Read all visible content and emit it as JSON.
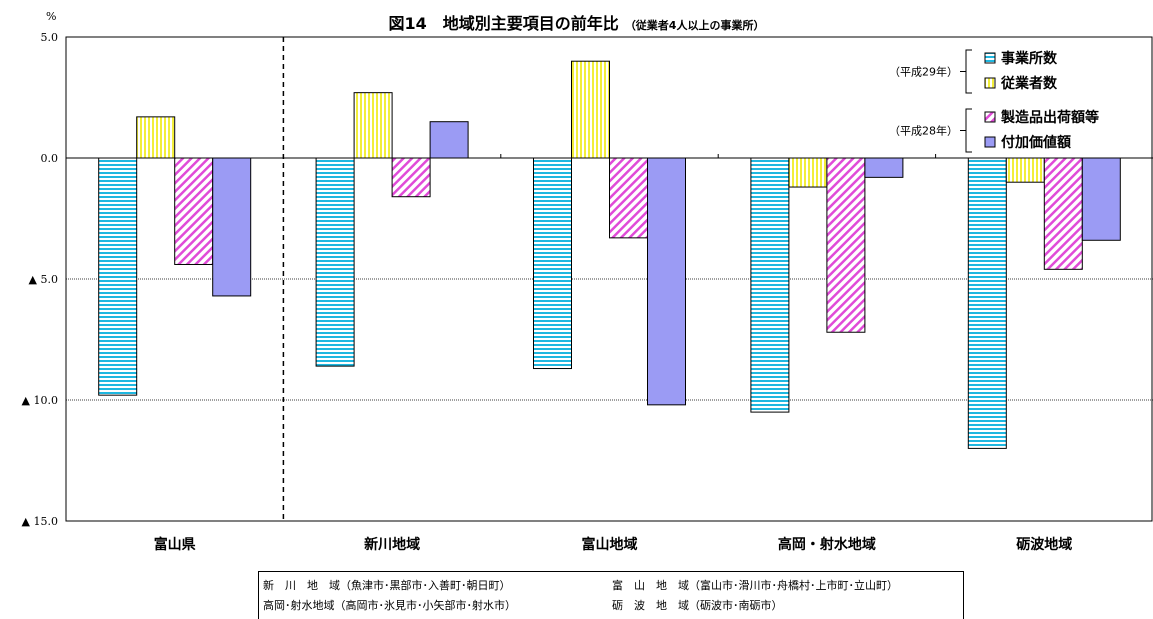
{
  "chart_data": {
    "type": "bar",
    "title": "図14　地域別主要項目の前年比",
    "subtitle": "（従業者4人以上の事業所）",
    "unit_label": "%",
    "categories": [
      "富山県",
      "新川地域",
      "富山地域",
      "高岡・射水地域",
      "砺波地域"
    ],
    "series": [
      {
        "name": "事業所数",
        "values": [
          -9.8,
          -8.6,
          -8.7,
          -10.5,
          -12.0
        ],
        "pattern": "hstripe",
        "color": "#1fb7e0",
        "fill": "#ffffff"
      },
      {
        "name": "従業者数",
        "values": [
          1.7,
          2.7,
          4.0,
          -1.2,
          -1.0
        ],
        "pattern": "vstripe",
        "color": "#f2ee3a",
        "fill": "#ffffff"
      },
      {
        "name": "製造品出荷額等",
        "values": [
          -4.4,
          -1.6,
          -3.3,
          -7.2,
          -4.6
        ],
        "pattern": "diag",
        "color": "#e04bd8",
        "fill": "#ffffff"
      },
      {
        "name": "付加価値額",
        "values": [
          -5.7,
          1.5,
          -10.2,
          -0.8,
          -3.4
        ],
        "pattern": "solid",
        "color": "#9b9bf4"
      }
    ],
    "ylim": [
      -15.0,
      5.0
    ],
    "yticks": [
      {
        "value": 5.0,
        "label": "5.0"
      },
      {
        "value": 0.0,
        "label": "0.0"
      },
      {
        "value": -5.0,
        "label": "▲ 5.0"
      },
      {
        "value": -10.0,
        "label": "▲ 10.0"
      },
      {
        "value": -15.0,
        "label": "▲ 15.0"
      }
    ],
    "gridlines": [
      -5.0,
      -10.0
    ],
    "legend": {
      "position": "top-right",
      "groups": [
        {
          "label": "（平成29年）",
          "items": [
            "事業所数",
            "従業者数"
          ]
        },
        {
          "label": "（平成28年）",
          "items": [
            "製造品出荷額等",
            "付加価値額"
          ]
        }
      ]
    },
    "separator_after_category": "富山県"
  },
  "footnote": [
    [
      "新　川　地　域（魚津市･黒部市･入善町･朝日町）",
      "富　山　地　域（富山市･滑川市･舟橋村･上市町･立山町）"
    ],
    [
      "高岡･射水地域（高岡市･氷見市･小矢部市･射水市）",
      "砺　波　地　域（砺波市･南砺市）"
    ]
  ]
}
